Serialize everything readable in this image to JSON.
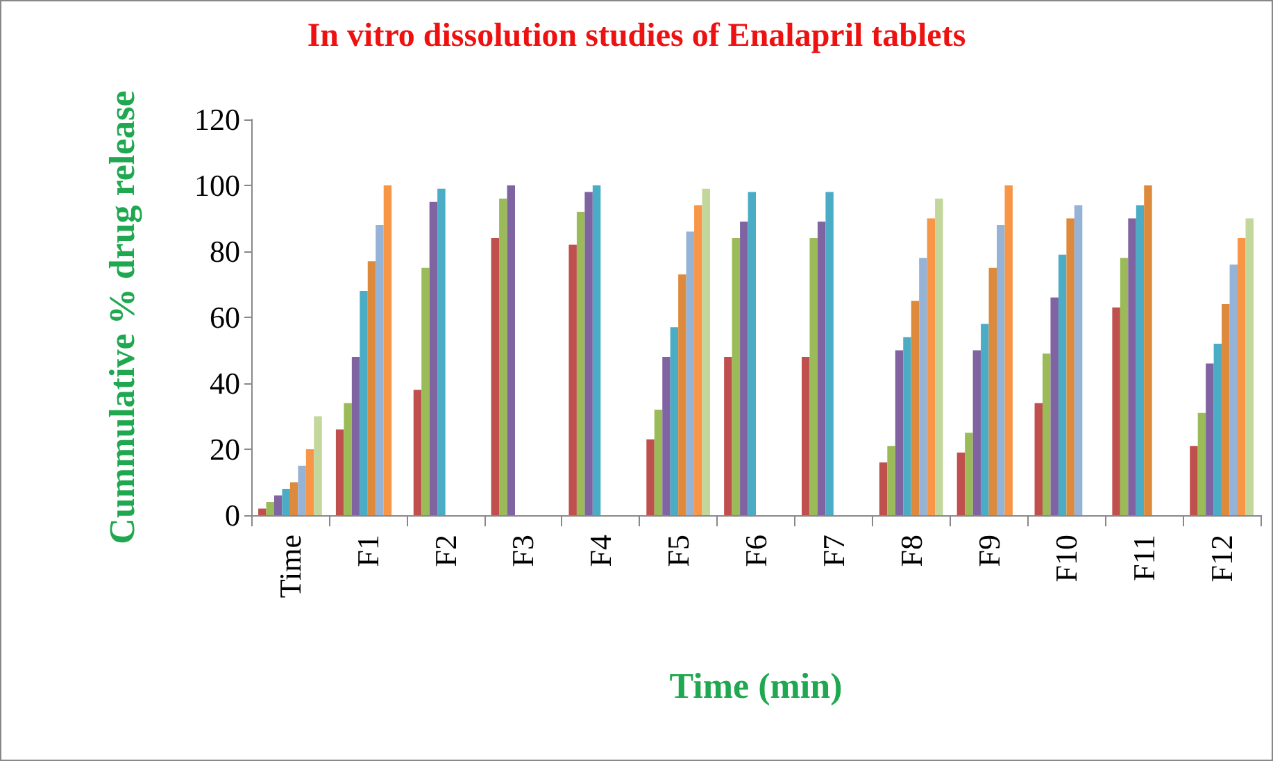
{
  "chart_data": {
    "type": "bar",
    "title": "In vitro dissolution studies of Enalapril tablets",
    "xlabel": "Time (min)",
    "ylabel": "Cummulative % drug release",
    "categories": [
      "Time",
      "F1",
      "F2",
      "F3",
      "F4",
      "F5",
      "F6",
      "F7",
      "F8",
      "F9",
      "F10",
      "F11",
      "F12"
    ],
    "ylim": [
      0,
      120
    ],
    "yticks": [
      0,
      20,
      40,
      60,
      80,
      100,
      120
    ],
    "series": [
      {
        "color": "#c0504d",
        "values": [
          2,
          26,
          38,
          84,
          82,
          23,
          48,
          48,
          16,
          19,
          34,
          63,
          21
        ]
      },
      {
        "color": "#9bbb59",
        "values": [
          4,
          34,
          75,
          96,
          92,
          32,
          84,
          84,
          21,
          25,
          49,
          78,
          31
        ]
      },
      {
        "color": "#8064a2",
        "values": [
          6,
          48,
          95,
          100,
          98,
          48,
          89,
          89,
          50,
          50,
          66,
          90,
          46
        ]
      },
      {
        "color": "#4bacc6",
        "values": [
          8,
          68,
          99,
          null,
          100,
          57,
          98,
          98,
          54,
          58,
          79,
          94,
          52
        ]
      },
      {
        "color": "#dd8a3c",
        "values": [
          10,
          77,
          null,
          null,
          null,
          73,
          null,
          null,
          65,
          75,
          90,
          100,
          64
        ]
      },
      {
        "color": "#95b3d7",
        "values": [
          15,
          88,
          null,
          null,
          null,
          86,
          null,
          null,
          78,
          88,
          94,
          null,
          76
        ]
      },
      {
        "color": "#f79646",
        "values": [
          20,
          100,
          null,
          null,
          null,
          94,
          null,
          null,
          90,
          100,
          null,
          null,
          84
        ]
      },
      {
        "color": "#c3d69b",
        "values": [
          30,
          null,
          null,
          null,
          null,
          99,
          null,
          null,
          96,
          null,
          null,
          null,
          90
        ]
      }
    ]
  }
}
